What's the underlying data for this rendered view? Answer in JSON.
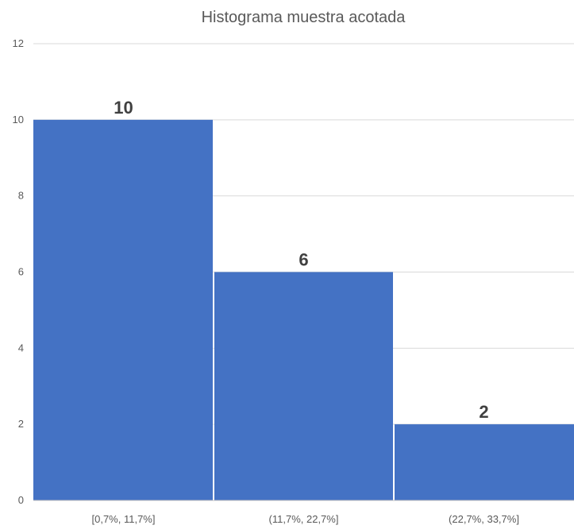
{
  "chart_data": {
    "type": "bar",
    "title": "Histograma muestra acotada",
    "categories": [
      "[0,7%, 11,7%]",
      "(11,7%, 22,7%]",
      "(22,7%, 33,7%]"
    ],
    "values": [
      10,
      6,
      2
    ],
    "xlabel": "",
    "ylabel": "",
    "ylim": [
      0,
      12
    ],
    "yticks": [
      0,
      2,
      4,
      6,
      8,
      10,
      12
    ],
    "grid": true,
    "legend": "none",
    "bar_color": "#4472c4",
    "data_labels": true
  }
}
